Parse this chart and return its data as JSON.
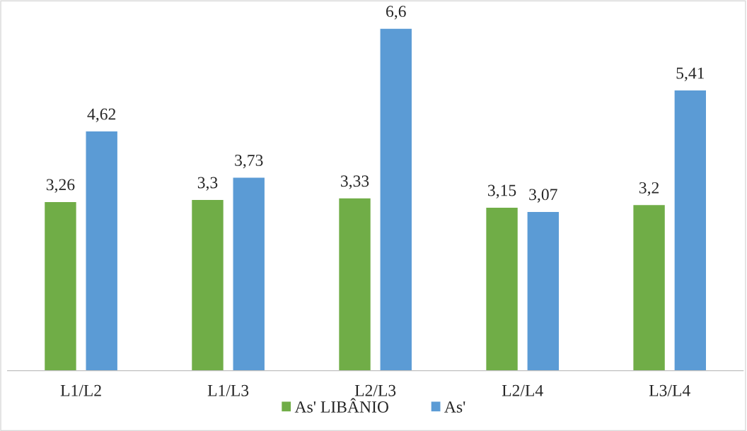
{
  "chart_data": {
    "type": "bar",
    "categories": [
      "L1/L2",
      "L1/L3",
      "L2/L3",
      "L2/L4",
      "L3/L4"
    ],
    "series": [
      {
        "name": "As' LIBÂNIO",
        "color": "#70ad47",
        "values": [
          3.26,
          3.3,
          3.33,
          3.15,
          3.2
        ],
        "value_labels": [
          "3,26",
          "3,3",
          "3,33",
          "3,15",
          "3,2"
        ]
      },
      {
        "name": "As'",
        "color": "#5b9bd5",
        "values": [
          4.62,
          3.73,
          6.6,
          3.07,
          5.41
        ],
        "value_labels": [
          "4,62",
          "3,73",
          "6,6",
          "3,07",
          "5,41"
        ]
      }
    ],
    "legend": "bottom",
    "grid": false
  }
}
